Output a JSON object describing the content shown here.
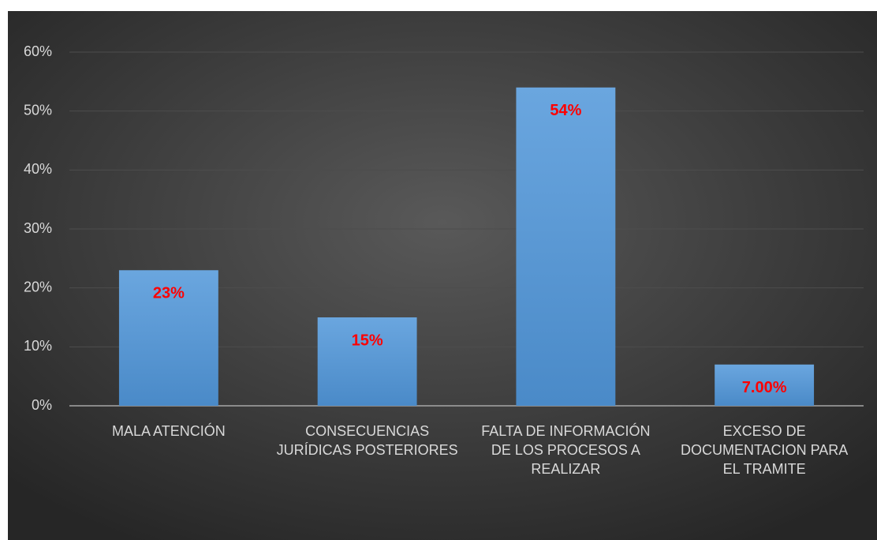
{
  "chart_data": {
    "type": "bar",
    "categories": [
      "MALA ATENCIÓN",
      "CONSECUENCIAS JURÍDICAS POSTERIORES",
      "FALTA DE INFORMACIÓN DE LOS PROCESOS A REALIZAR",
      "EXCESO DE DOCUMENTACION PARA EL TRAMITE"
    ],
    "values": [
      23,
      15,
      54,
      7
    ],
    "value_labels": [
      "23%",
      "15%",
      "54%",
      "7.00%"
    ],
    "color": "#5b9bd5",
    "ylim": [
      0,
      60
    ],
    "yticks": [
      {
        "value": 0,
        "label": "0%"
      },
      {
        "value": 10,
        "label": "10%"
      },
      {
        "value": 20,
        "label": "20%"
      },
      {
        "value": 30,
        "label": "30%"
      },
      {
        "value": 40,
        "label": "40%"
      },
      {
        "value": 50,
        "label": "50%"
      },
      {
        "value": 60,
        "label": "60%"
      }
    ],
    "grid": true
  }
}
